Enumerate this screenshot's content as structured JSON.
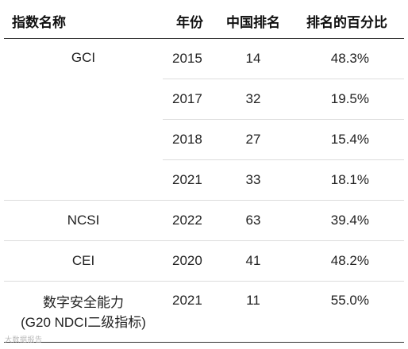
{
  "table": {
    "headers": [
      "指数名称",
      "年份",
      "中国排名",
      "排名的百分比"
    ],
    "groups": [
      {
        "name": "GCI",
        "rows": [
          {
            "year": "2015",
            "rank": "14",
            "pct": "48.3%"
          },
          {
            "year": "2017",
            "rank": "32",
            "pct": "19.5%"
          },
          {
            "year": "2018",
            "rank": "27",
            "pct": "15.4%"
          },
          {
            "year": "2021",
            "rank": "33",
            "pct": "18.1%"
          }
        ]
      },
      {
        "name": "NCSI",
        "rows": [
          {
            "year": "2022",
            "rank": "63",
            "pct": "39.4%"
          }
        ]
      },
      {
        "name": "CEI",
        "rows": [
          {
            "year": "2020",
            "rank": "41",
            "pct": "48.2%"
          }
        ]
      },
      {
        "name_line1": "数字安全能力",
        "name_line2": "(G20 NDCI二级指标)",
        "rows": [
          {
            "year": "2021",
            "rank": "11",
            "pct": "55.0%"
          }
        ]
      }
    ]
  },
  "watermark": "大数据报告"
}
